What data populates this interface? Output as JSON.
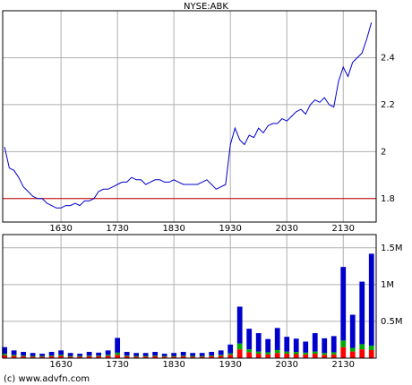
{
  "chart_data": [
    {
      "type": "line",
      "title": "NYSE:ABK",
      "x": [
        930,
        935,
        940,
        945,
        950,
        955,
        960,
        965,
        970,
        975,
        980,
        985,
        990,
        995,
        1000,
        1005,
        1010,
        1015,
        1020,
        1025,
        1030,
        1035,
        1040,
        1045,
        1050,
        1055,
        1060,
        1065,
        1070,
        1075,
        1080,
        1085,
        1090,
        1095,
        1100,
        1105,
        1110,
        1115,
        1120,
        1125,
        1130,
        1135,
        1140,
        1145,
        1150,
        1155,
        1160,
        1165,
        1170,
        1175,
        1180,
        1185,
        1190,
        1195,
        1200,
        1205,
        1210,
        1215,
        1220,
        1225,
        1230,
        1235,
        1240,
        1245,
        1250,
        1255,
        1260,
        1265,
        1270,
        1275,
        1280,
        1285,
        1290,
        1295,
        1300,
        1305,
        1310,
        1315,
        1320
      ],
      "series": [
        {
          "color": "#0000cc",
          "values": [
            2.02,
            1.93,
            1.92,
            1.89,
            1.85,
            1.83,
            1.81,
            1.8,
            1.8,
            1.78,
            1.77,
            1.76,
            1.76,
            1.77,
            1.77,
            1.78,
            1.77,
            1.79,
            1.79,
            1.8,
            1.83,
            1.84,
            1.84,
            1.85,
            1.86,
            1.87,
            1.87,
            1.89,
            1.88,
            1.88,
            1.86,
            1.87,
            1.88,
            1.88,
            1.87,
            1.87,
            1.88,
            1.87,
            1.86,
            1.86,
            1.86,
            1.86,
            1.87,
            1.88,
            1.86,
            1.84,
            1.85,
            1.86,
            2.03,
            2.1,
            2.05,
            2.03,
            2.07,
            2.06,
            2.1,
            2.08,
            2.11,
            2.12,
            2.12,
            2.14,
            2.13,
            2.15,
            2.17,
            2.18,
            2.16,
            2.2,
            2.22,
            2.21,
            2.23,
            2.2,
            2.19,
            2.3,
            2.36,
            2.32,
            2.38,
            2.4,
            2.42,
            2.48,
            2.55
          ]
        }
      ],
      "reference_line": {
        "value": 1.8,
        "color": "#cc0000"
      },
      "xlim": [
        928,
        1325
      ],
      "xticks": [
        {
          "value": 990,
          "label": "1630"
        },
        {
          "value": 1050,
          "label": "1730"
        },
        {
          "value": 1110,
          "label": "1830"
        },
        {
          "value": 1170,
          "label": "1930"
        },
        {
          "value": 1230,
          "label": "2030"
        },
        {
          "value": 1290,
          "label": "2130"
        }
      ],
      "ylim": [
        1.7,
        2.6
      ],
      "yticks": [
        1.8,
        2,
        2.2,
        2.4
      ],
      "grid": true
    },
    {
      "type": "bar",
      "x": [
        930,
        940,
        950,
        960,
        970,
        980,
        990,
        1000,
        1010,
        1020,
        1030,
        1040,
        1050,
        1060,
        1070,
        1080,
        1090,
        1100,
        1110,
        1120,
        1130,
        1140,
        1150,
        1160,
        1170,
        1180,
        1190,
        1200,
        1210,
        1220,
        1230,
        1240,
        1250,
        1260,
        1270,
        1280,
        1290,
        1300,
        1310,
        1320
      ],
      "series": [
        {
          "color": "#ff0000",
          "values": [
            40000,
            30000,
            25000,
            20000,
            20000,
            25000,
            30000,
            20000,
            20000,
            25000,
            25000,
            30000,
            45000,
            25000,
            20000,
            20000,
            25000,
            20000,
            20000,
            25000,
            20000,
            20000,
            25000,
            30000,
            45000,
            120000,
            80000,
            60000,
            50000,
            70000,
            60000,
            55000,
            50000,
            60000,
            45000,
            50000,
            150000,
            90000,
            120000,
            110000
          ]
        },
        {
          "color": "#00aa00",
          "values": [
            20000,
            15000,
            10000,
            10000,
            10000,
            10000,
            15000,
            10000,
            10000,
            10000,
            10000,
            15000,
            30000,
            10000,
            10000,
            10000,
            10000,
            10000,
            10000,
            10000,
            10000,
            10000,
            10000,
            15000,
            20000,
            80000,
            40000,
            30000,
            30000,
            40000,
            30000,
            30000,
            25000,
            30000,
            25000,
            30000,
            90000,
            50000,
            70000,
            60000
          ]
        },
        {
          "color": "#0000cc",
          "values": [
            90000,
            60000,
            50000,
            40000,
            30000,
            50000,
            60000,
            40000,
            30000,
            50000,
            40000,
            60000,
            200000,
            50000,
            40000,
            40000,
            50000,
            30000,
            40000,
            50000,
            40000,
            40000,
            50000,
            60000,
            120000,
            500000,
            280000,
            250000,
            180000,
            300000,
            200000,
            180000,
            150000,
            250000,
            200000,
            220000,
            1000000,
            450000,
            850000,
            1250000
          ]
        }
      ],
      "xlim": [
        928,
        1325
      ],
      "xticks": [
        {
          "value": 990,
          "label": "1630"
        },
        {
          "value": 1050,
          "label": "1730"
        },
        {
          "value": 1110,
          "label": "1830"
        },
        {
          "value": 1170,
          "label": "1930"
        },
        {
          "value": 1230,
          "label": "2030"
        },
        {
          "value": 1290,
          "label": "2130"
        }
      ],
      "ylim": [
        0,
        1680000
      ],
      "yticks": [
        {
          "value": 500000,
          "label": "0.5M"
        },
        {
          "value": 1000000,
          "label": "1M"
        },
        {
          "value": 1500000,
          "label": "1.5M"
        }
      ],
      "grid": true
    }
  ],
  "footer": "(c) www.advfn.com"
}
